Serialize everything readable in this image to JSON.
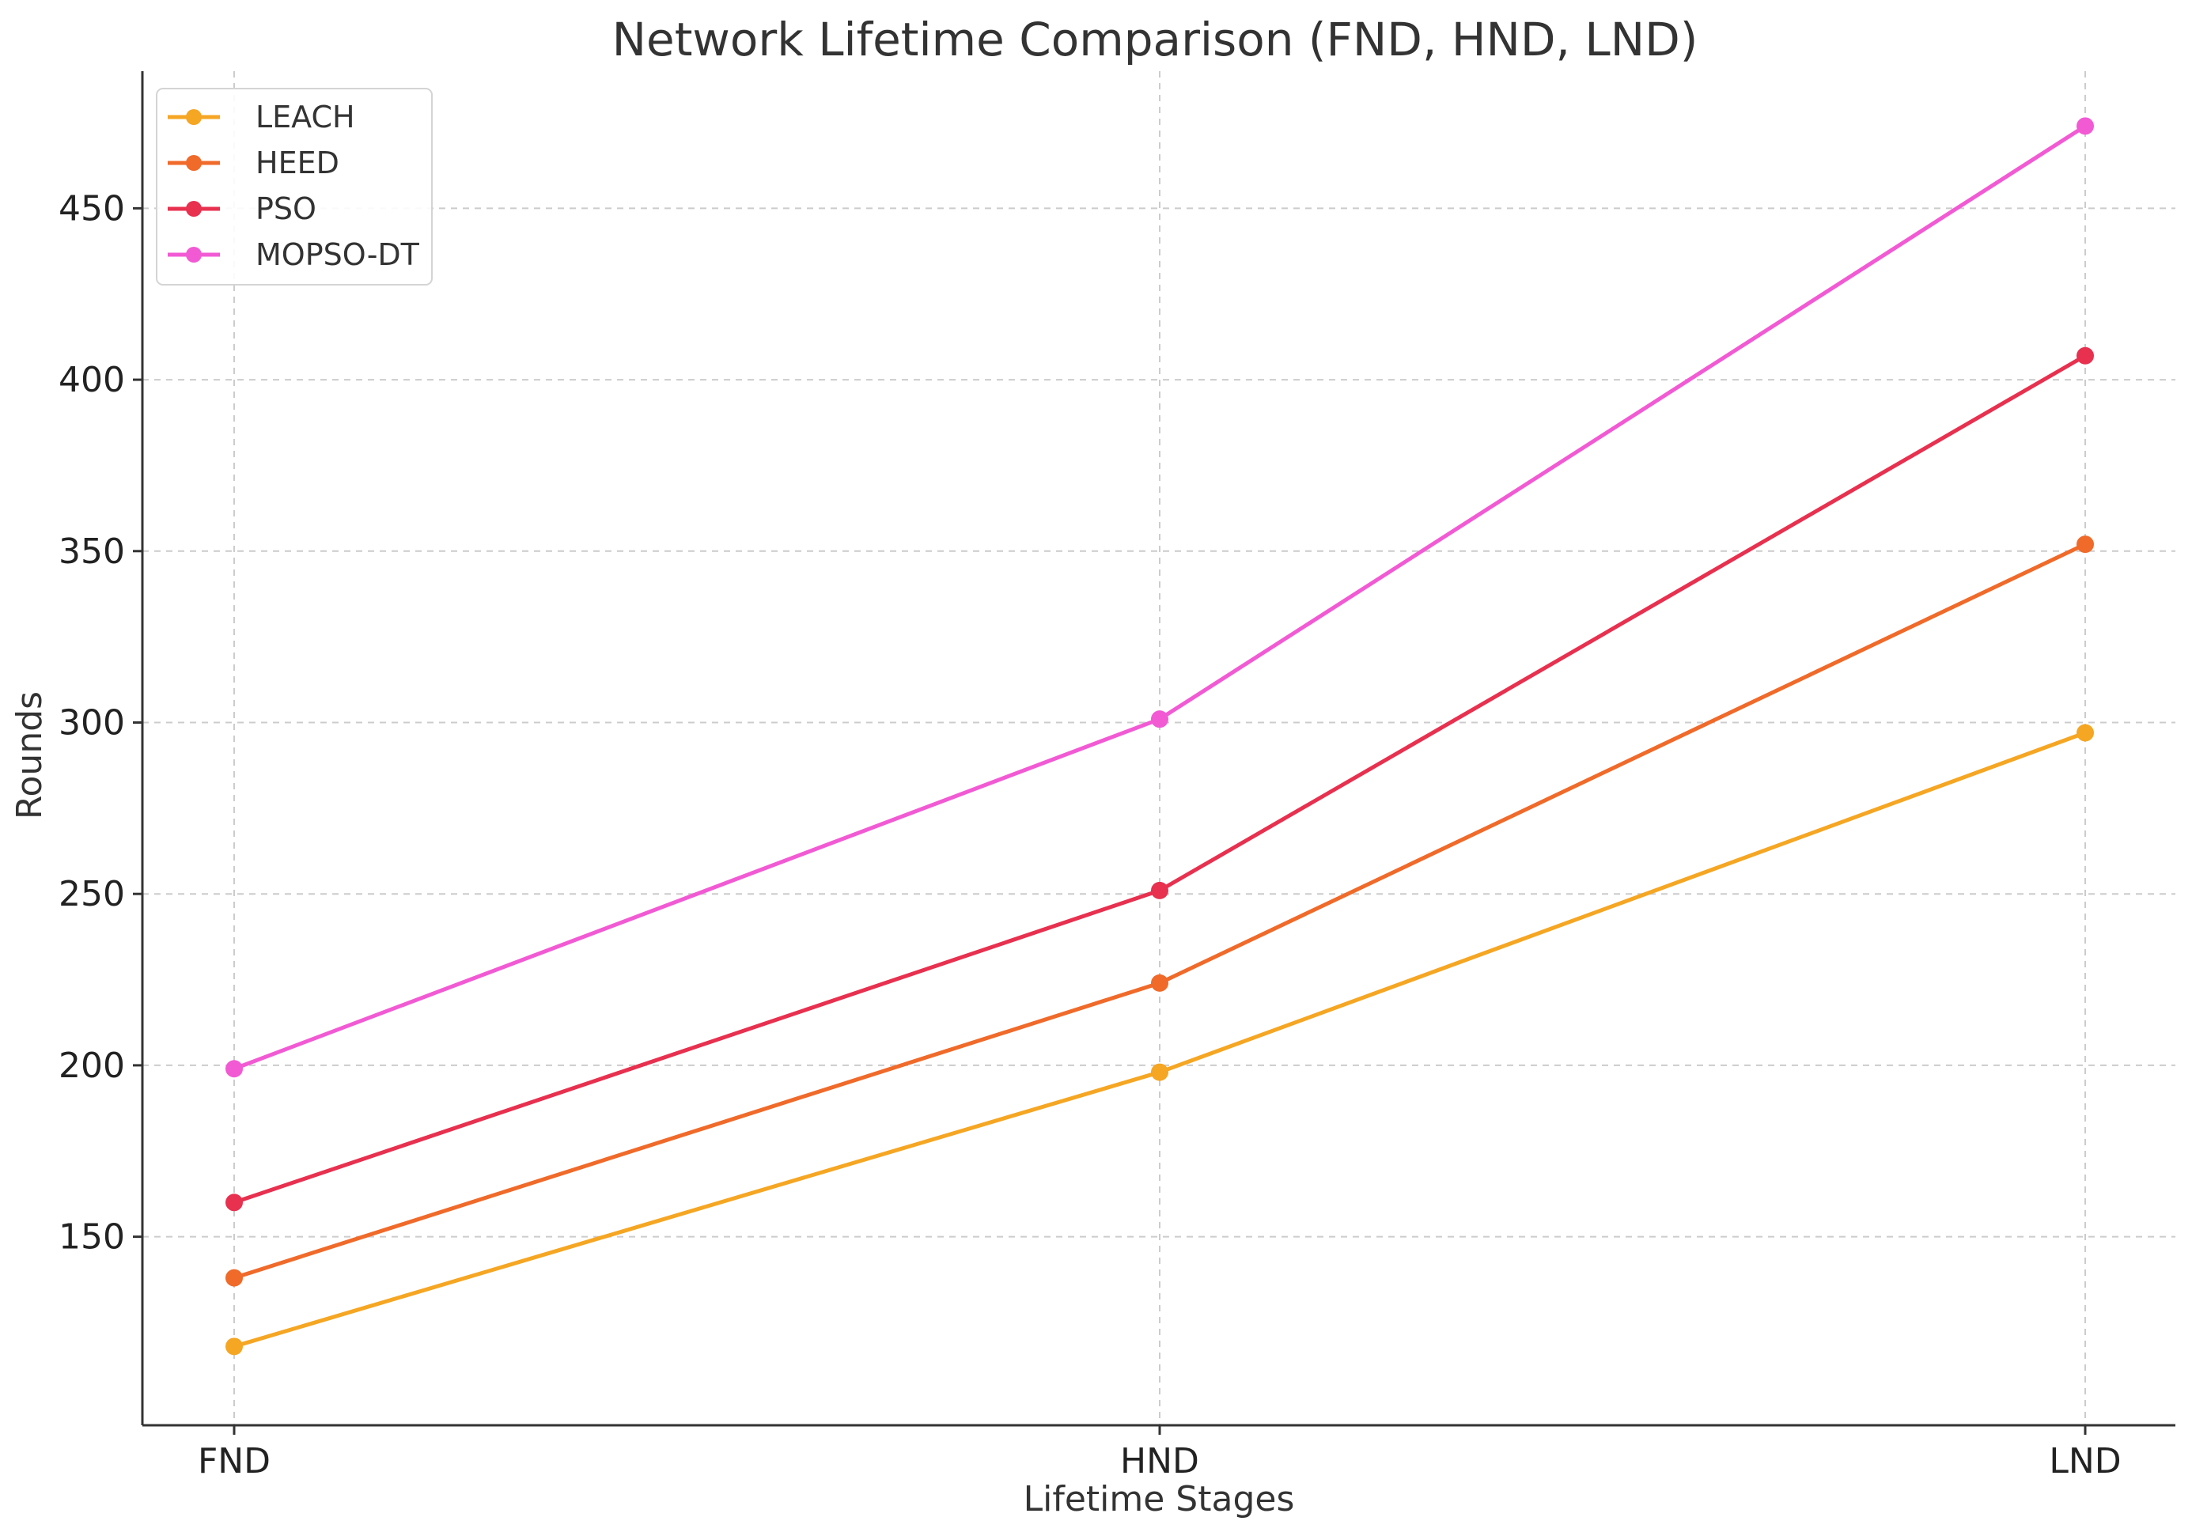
{
  "chart_data": {
    "type": "line",
    "title": "Network Lifetime Comparison (FND, HND, LND)",
    "xlabel": "Lifetime Stages",
    "ylabel": "Rounds",
    "categories": [
      "FND",
      "HND",
      "LND"
    ],
    "ylim": [
      95,
      490
    ],
    "yticks": [
      150,
      200,
      250,
      300,
      350,
      400,
      450
    ],
    "grid": true,
    "legend_position": "top-left",
    "series": [
      {
        "name": "LEACH",
        "color": "#f5a623",
        "values": [
          118,
          198,
          297
        ]
      },
      {
        "name": "HEED",
        "color": "#f06a2a",
        "values": [
          138,
          224,
          352
        ]
      },
      {
        "name": "PSO",
        "color": "#e8304f",
        "values": [
          160,
          251,
          407
        ]
      },
      {
        "name": "MOPSO-DT",
        "color": "#f25ad4",
        "values": [
          199,
          301,
          474
        ]
      }
    ]
  }
}
